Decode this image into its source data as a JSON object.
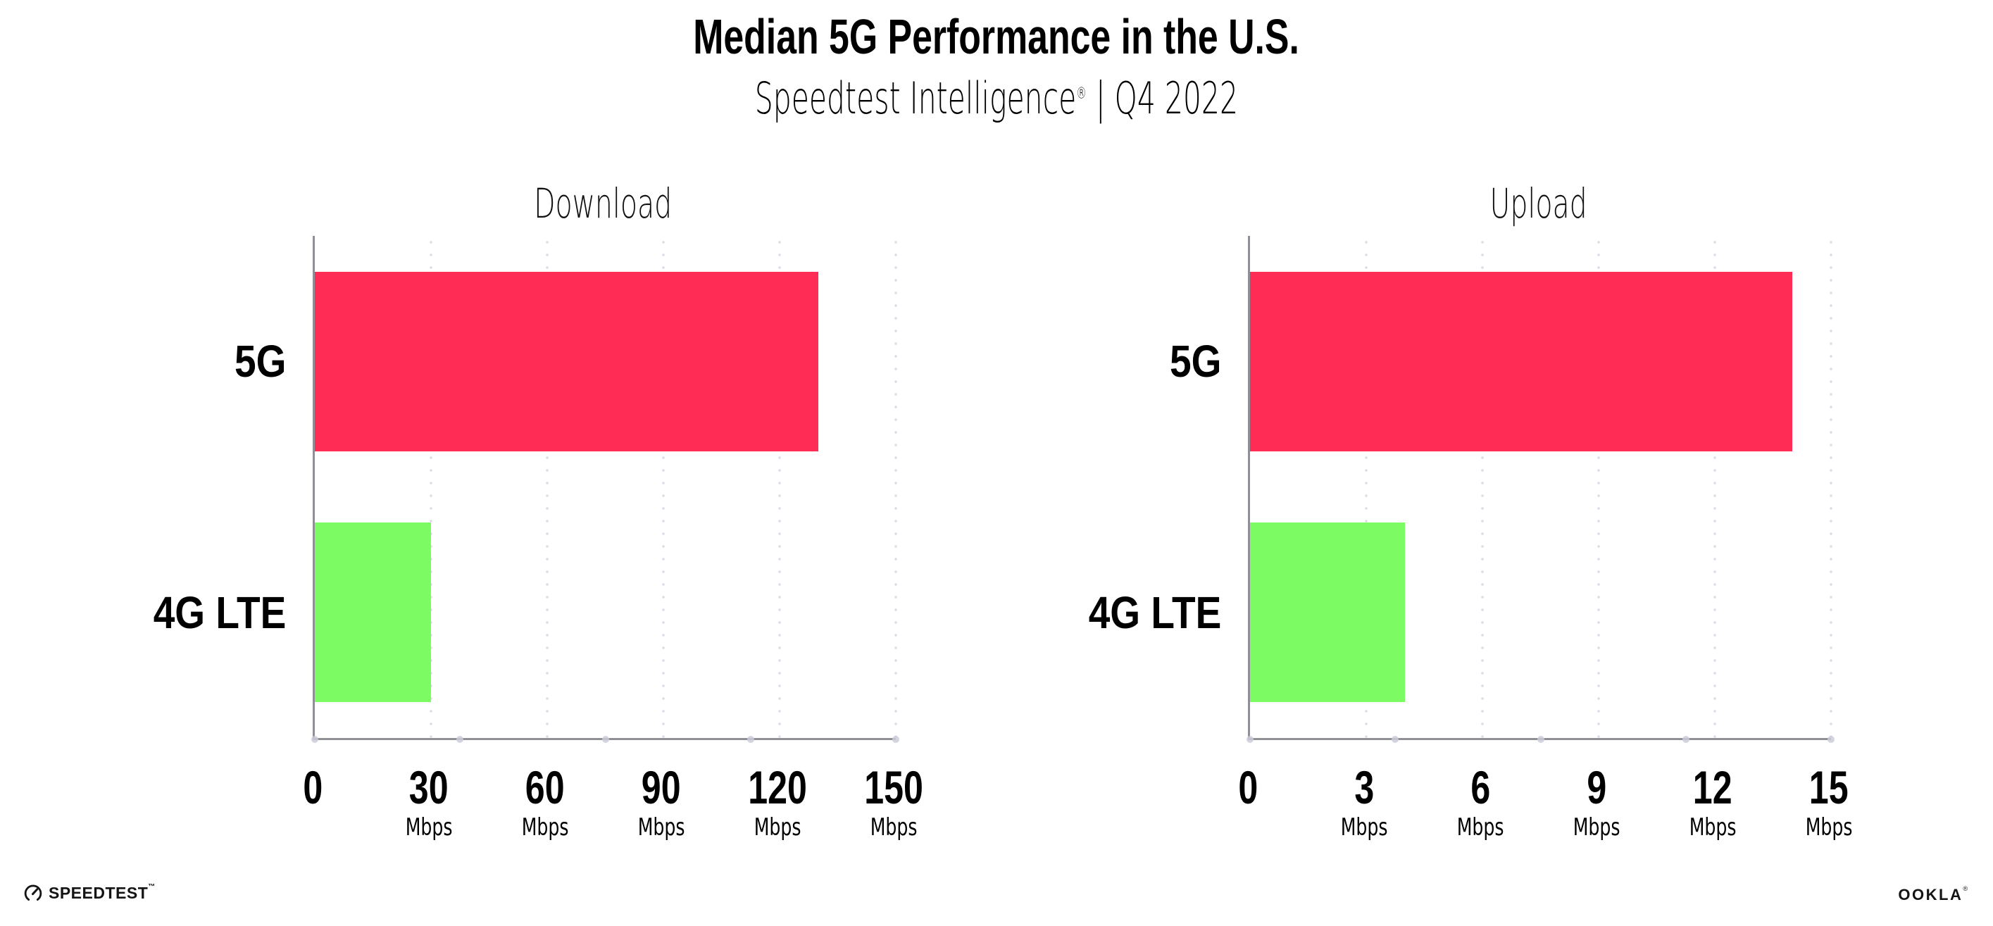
{
  "page": {
    "background": "#FFFFFF"
  },
  "header": {
    "title": "Median 5G Performance in the U.S.",
    "subtitle_brand": "Speedtest Intelligence",
    "subtitle_reg": "®",
    "subtitle_rest": " | Q4 2022"
  },
  "chart_data": [
    {
      "type": "bar",
      "orientation": "horizontal",
      "title": "Download",
      "unit": "Mbps",
      "categories": [
        "5G",
        "4G LTE"
      ],
      "values": [
        130,
        30
      ],
      "xlim": [
        0,
        150
      ],
      "xticks": [
        0,
        30,
        60,
        90,
        120,
        150
      ],
      "bar_colors": [
        "#FF2D55",
        "#7DFB63"
      ],
      "grid": "vertical-dotted",
      "legend": "none"
    },
    {
      "type": "bar",
      "orientation": "horizontal",
      "title": "Upload",
      "unit": "Mbps",
      "categories": [
        "5G",
        "4G LTE"
      ],
      "values": [
        14,
        4
      ],
      "xlim": [
        0,
        15
      ],
      "xticks": [
        0,
        3,
        6,
        9,
        12,
        15
      ],
      "bar_colors": [
        "#FF2D55",
        "#7DFB63"
      ],
      "grid": "vertical-dotted",
      "legend": "none"
    }
  ],
  "colors": {
    "bar_5g": "#FF2D55",
    "bar_4g_lte": "#7DFB63",
    "axis": "#8F8F96",
    "gridline": "#DEDDE9",
    "text": "#000000"
  },
  "footer": {
    "speedtest_icon": "gauge-icon",
    "speedtest_logo_text": "SPEEDTEST",
    "speedtest_tm": "™",
    "ookla_logo_text": "OOKLA",
    "ookla_reg": "®"
  }
}
